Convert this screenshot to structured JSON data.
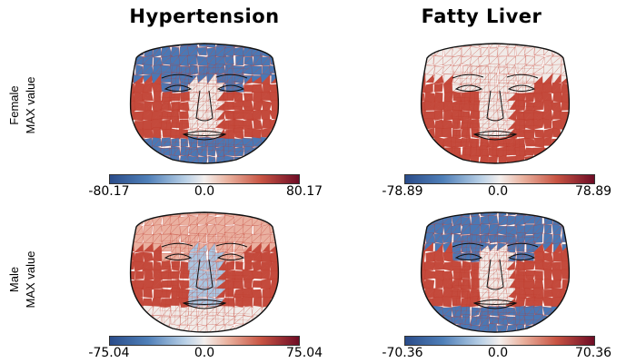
{
  "titles": {
    "left": "Hypertension",
    "right": "Fatty Liver"
  },
  "rows": {
    "female": {
      "line1": "Female",
      "line2": "MAX value"
    },
    "male": {
      "line1": "Male",
      "line2": "MAX value"
    }
  },
  "colorbars": {
    "female_hypertension": {
      "min": "-80.17",
      "mid": "0.0",
      "max": "80.17"
    },
    "female_fatty_liver": {
      "min": "-78.89",
      "mid": "0.0",
      "max": "78.89"
    },
    "male_hypertension": {
      "min": "-75.04",
      "mid": "0.0",
      "max": "75.04"
    },
    "male_fatty_liver": {
      "min": "-70.36",
      "mid": "0.0",
      "max": "70.36"
    }
  },
  "colormap": {
    "negative": "#2a4c8a",
    "neutral": "#f4f0ee",
    "positive": "#6e0c25",
    "mesh_line": "#c0392b",
    "feature_line": "#111111"
  },
  "panels": [
    {
      "id": "female-hypertension",
      "forehead": "blue",
      "cheeks": "red",
      "chin": "blue",
      "nose": "light"
    },
    {
      "id": "female-fatty-liver",
      "forehead": "light",
      "cheeks": "red",
      "chin": "red",
      "nose": "light"
    },
    {
      "id": "male-hypertension",
      "forehead": "light-red",
      "cheeks": "red",
      "chin": "light",
      "nose": "light-blue"
    },
    {
      "id": "male-fatty-liver",
      "forehead": "blue",
      "cheeks": "red",
      "chin": "blue",
      "nose": "light"
    }
  ]
}
